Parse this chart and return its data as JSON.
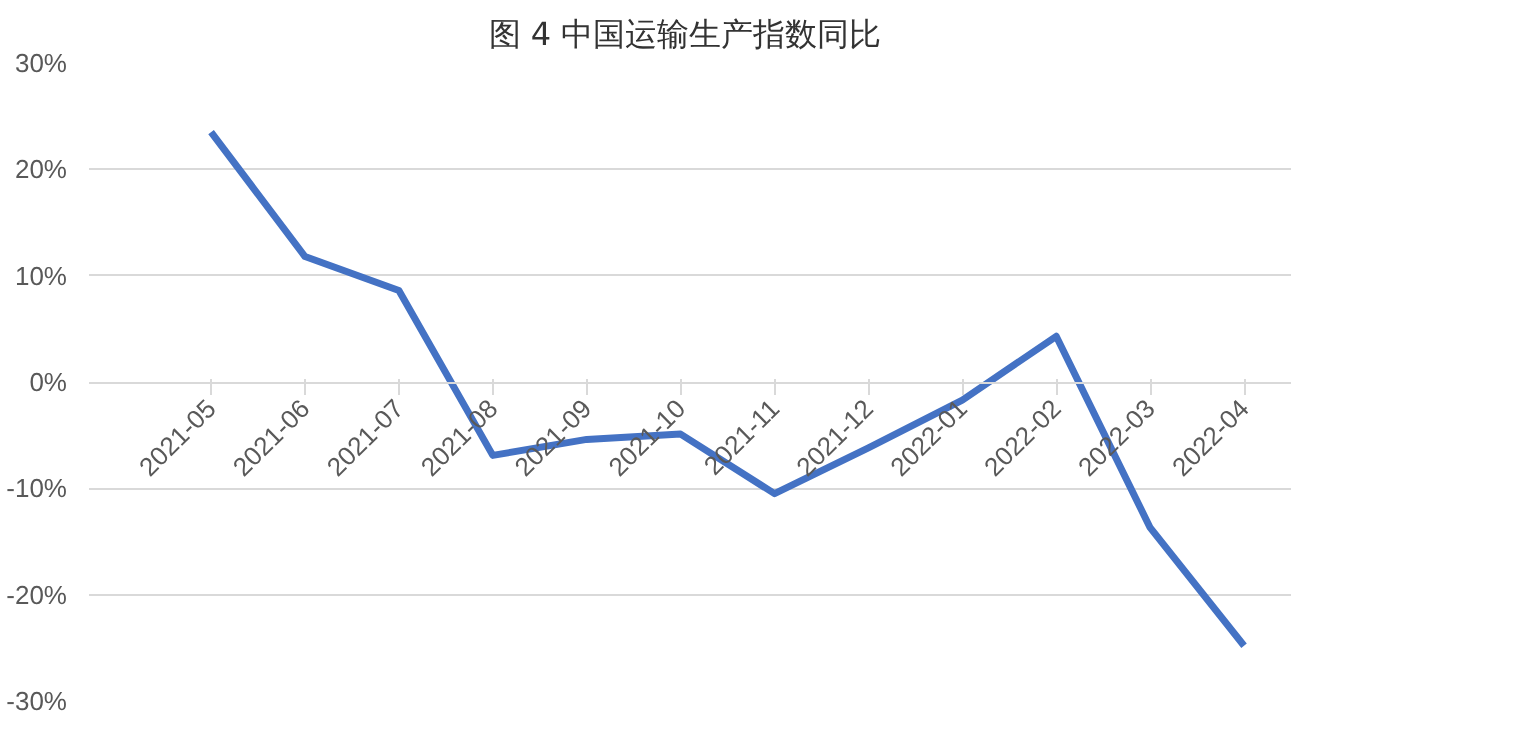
{
  "chart_data": {
    "type": "line",
    "title": "图 4  中国运输生产指数同比",
    "categories": [
      "2021-05",
      "2021-06",
      "2021-07",
      "2021-08",
      "2021-09",
      "2021-10",
      "2021-11",
      "2021-12",
      "2022-01",
      "2022-02",
      "2022-03",
      "2022-04"
    ],
    "series": [
      {
        "color": "#4472c4",
        "values": [
          23.5,
          11.8,
          8.6,
          -6.9,
          -5.4,
          -4.9,
          -10.5,
          -6.2,
          -1.7,
          4.3,
          -13.7,
          -24.8
        ]
      }
    ],
    "ylim": [
      -30,
      30
    ],
    "yticks": [
      {
        "value": -30,
        "label": "-30%"
      },
      {
        "value": -20,
        "label": "-20%"
      },
      {
        "value": -10,
        "label": "-10%"
      },
      {
        "value": 0,
        "label": "0%"
      },
      {
        "value": 10,
        "label": "10%"
      },
      {
        "value": 20,
        "label": "20%"
      },
      {
        "value": 30,
        "label": "30%"
      }
    ],
    "grid": "y",
    "marker": "none",
    "line_style": "solid"
  }
}
